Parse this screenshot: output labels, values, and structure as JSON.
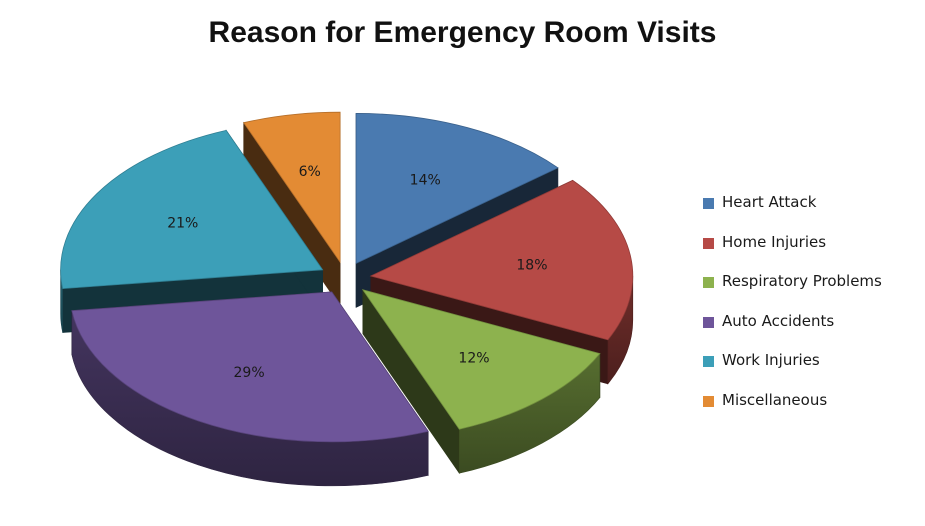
{
  "chart_data": {
    "type": "pie",
    "title": "Reason for Emergency Room Visits",
    "legend_position": "right",
    "slices": [
      {
        "label": "Heart Attack",
        "value": 14,
        "display": "14%",
        "color": "#4a7ab0"
      },
      {
        "label": "Home Injuries",
        "value": 18,
        "display": "18%",
        "color": "#b64a46"
      },
      {
        "label": "Respiratory Problems",
        "value": 12,
        "display": "12%",
        "color": "#8db24e"
      },
      {
        "label": "Auto Accidents",
        "value": 29,
        "display": "29%",
        "color": "#6e559a"
      },
      {
        "label": "Work Injuries",
        "value": 21,
        "display": "21%",
        "color": "#3c9fb8"
      },
      {
        "label": "Miscellaneous",
        "value": 6,
        "display": "6%",
        "color": "#e38b34"
      }
    ]
  }
}
